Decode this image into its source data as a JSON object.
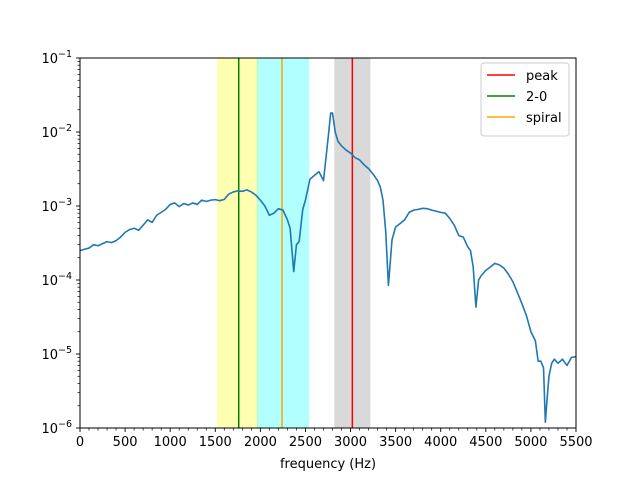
{
  "chart_data": {
    "type": "line",
    "xlabel": "frequency (Hz)",
    "ylabel": "",
    "xlim": [
      0,
      5500
    ],
    "ylim": [
      1e-06,
      0.1
    ],
    "yscale": "log",
    "grid": false,
    "legend_position": "top-right",
    "x_ticks": [
      {
        "value": 0,
        "label": "0"
      },
      {
        "value": 500,
        "label": "500"
      },
      {
        "value": 1000,
        "label": "1000"
      },
      {
        "value": 1500,
        "label": "1500"
      },
      {
        "value": 2000,
        "label": "2000"
      },
      {
        "value": 2500,
        "label": "2500"
      },
      {
        "value": 3000,
        "label": "3000"
      },
      {
        "value": 3500,
        "label": "3500"
      },
      {
        "value": 4000,
        "label": "4000"
      },
      {
        "value": 4500,
        "label": "4500"
      },
      {
        "value": 5000,
        "label": "5000"
      },
      {
        "value": 5500,
        "label": "5500"
      }
    ],
    "x_minor_step": 100,
    "y_ticks": [
      {
        "value": 1e-06,
        "base": "10",
        "exp": "−6"
      },
      {
        "value": 1e-05,
        "base": "10",
        "exp": "−5"
      },
      {
        "value": 0.0001,
        "base": "10",
        "exp": "−4"
      },
      {
        "value": 0.001,
        "base": "10",
        "exp": "−3"
      },
      {
        "value": 0.01,
        "base": "10",
        "exp": "−2"
      },
      {
        "value": 0.1,
        "base": "10",
        "exp": "−1"
      }
    ],
    "bands": [
      {
        "from": 1520,
        "to": 1980,
        "color": "#ffff00",
        "opacity": 0.3
      },
      {
        "from": 1960,
        "to": 2540,
        "color": "#00ffff",
        "opacity": 0.3
      },
      {
        "from": 2820,
        "to": 3220,
        "color": "#808080",
        "opacity": 0.3
      }
    ],
    "vlines": [
      {
        "name": "peak",
        "x": 3020,
        "color": "#ff0000"
      },
      {
        "name": "2-0",
        "x": 1760,
        "color": "#008000"
      },
      {
        "name": "spiral",
        "x": 2240,
        "color": "#ffa500"
      }
    ],
    "series": [
      {
        "color": "#1f77b4",
        "x": [
          0,
          50,
          100,
          150,
          200,
          250,
          300,
          350,
          400,
          450,
          500,
          550,
          600,
          650,
          700,
          750,
          800,
          850,
          900,
          950,
          1000,
          1050,
          1100,
          1150,
          1200,
          1250,
          1300,
          1350,
          1400,
          1450,
          1500,
          1550,
          1600,
          1650,
          1700,
          1750,
          1800,
          1850,
          1900,
          1950,
          2000,
          2050,
          2100,
          2150,
          2200,
          2250,
          2300,
          2330,
          2370,
          2400,
          2430,
          2470,
          2500,
          2550,
          2600,
          2650,
          2700,
          2750,
          2780,
          2800,
          2830,
          2860,
          2900,
          2950,
          3000,
          3050,
          3100,
          3150,
          3200,
          3250,
          3300,
          3330,
          3360,
          3390,
          3420,
          3460,
          3500,
          3550,
          3600,
          3650,
          3700,
          3750,
          3800,
          3850,
          3900,
          3950,
          4000,
          4050,
          4100,
          4150,
          4200,
          4250,
          4300,
          4330,
          4360,
          4390,
          4420,
          4450,
          4500,
          4550,
          4600,
          4650,
          4700,
          4750,
          4800,
          4850,
          4900,
          4950,
          5000,
          5050,
          5080,
          5110,
          5140,
          5160,
          5180,
          5200,
          5230,
          5260,
          5300,
          5350,
          5400,
          5450,
          5500
        ],
        "y": [
          0.00025,
          0.00026,
          0.00027,
          0.0003,
          0.00029,
          0.00031,
          0.00033,
          0.00032,
          0.00034,
          0.00038,
          0.00044,
          0.00048,
          0.0005,
          0.00047,
          0.00055,
          0.00065,
          0.0006,
          0.00075,
          0.00082,
          0.0009,
          0.00105,
          0.0011,
          0.00098,
          0.00108,
          0.00103,
          0.0011,
          0.00105,
          0.0012,
          0.00115,
          0.0012,
          0.00122,
          0.00118,
          0.00123,
          0.00145,
          0.00155,
          0.0016,
          0.00158,
          0.00165,
          0.00155,
          0.0014,
          0.0012,
          0.001,
          0.00075,
          0.0008,
          0.00092,
          0.00088,
          0.00065,
          0.0005,
          0.00013,
          0.0003,
          0.00033,
          0.0009,
          0.0012,
          0.0023,
          0.0026,
          0.0029,
          0.0022,
          0.008,
          0.018,
          0.018,
          0.01,
          0.0075,
          0.0065,
          0.0057,
          0.0052,
          0.0045,
          0.0042,
          0.0036,
          0.0032,
          0.0027,
          0.0022,
          0.0018,
          0.0012,
          0.00045,
          8.5e-05,
          0.00035,
          0.00052,
          0.00058,
          0.00065,
          0.00082,
          0.00088,
          0.0009,
          0.00093,
          0.00092,
          0.00088,
          0.00085,
          0.00082,
          0.0008,
          0.00068,
          0.00055,
          0.0004,
          0.00038,
          0.00028,
          0.00025,
          0.00015,
          4.3e-05,
          0.0001,
          0.000115,
          0.000135,
          0.00015,
          0.000168,
          0.00016,
          0.000145,
          0.00012,
          9.5e-05,
          6.8e-05,
          4.8e-05,
          3.3e-05,
          2e-05,
          1.5e-05,
          8e-06,
          8e-06,
          6.5e-06,
          1.2e-06,
          2.5e-06,
          5e-06,
          7.5e-06,
          8.5e-06,
          7.5e-06,
          8.5e-06,
          7e-06,
          9e-06,
          9.2e-06
        ]
      }
    ]
  }
}
